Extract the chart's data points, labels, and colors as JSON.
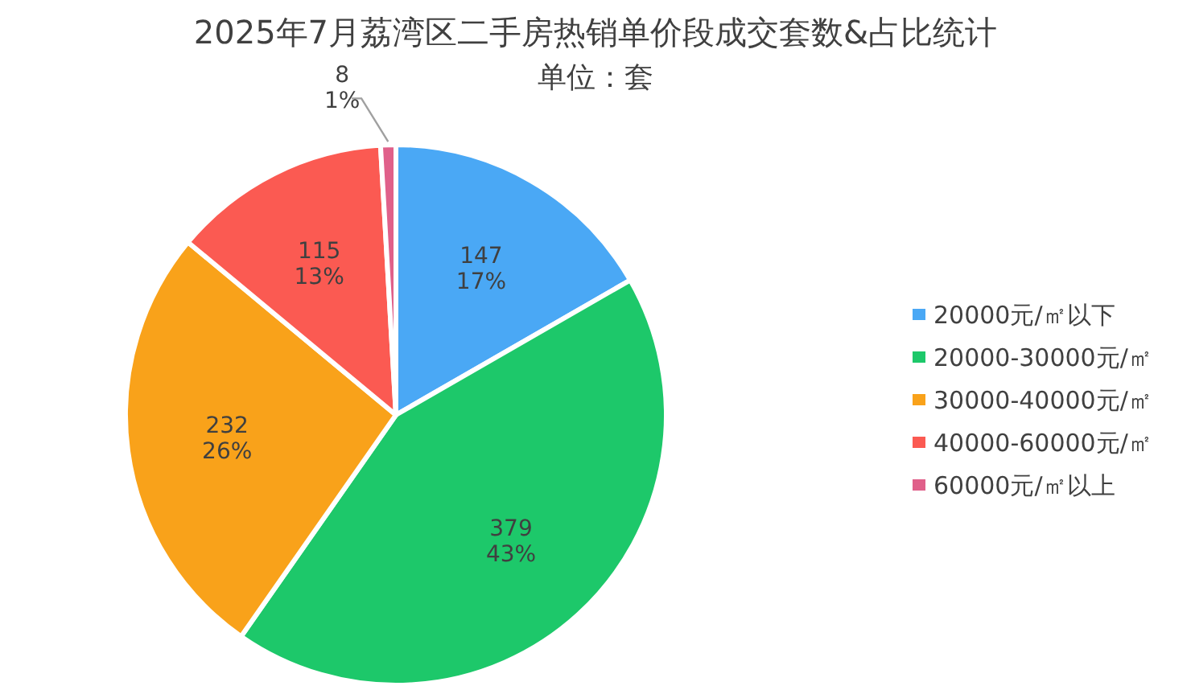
{
  "chart_data": {
    "type": "pie",
    "title": "2025年7月荔湾区二手房热销单价段成交套数&占比统计",
    "subtitle": "单位：套",
    "categories": [
      "20000元/㎡以下",
      "20000-30000元/㎡",
      "30000-40000元/㎡",
      "40000-60000元/㎡",
      "60000元/㎡以上"
    ],
    "values": [
      147,
      379,
      232,
      115,
      8
    ],
    "value_labels": [
      "147\n17%",
      "379\n43%",
      "232\n26%",
      "115\n13%",
      "8\n1%"
    ],
    "colors": [
      "#4aa8f5",
      "#1dc86a",
      "#f9a21a",
      "#fb5a52",
      "#e0608a"
    ],
    "legend": "right"
  }
}
